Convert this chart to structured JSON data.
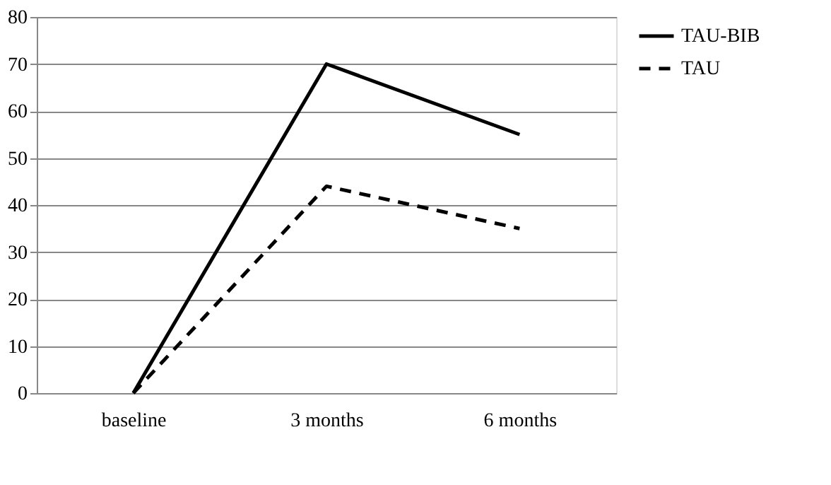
{
  "chart_data": {
    "type": "line",
    "categories": [
      "baseline",
      "3 months",
      "6 months"
    ],
    "series": [
      {
        "name": "TAU-BIB",
        "color": "#000000",
        "values": [
          0,
          70,
          55
        ],
        "line_style": "solid"
      },
      {
        "name": "TAU",
        "color": "#000000",
        "values": [
          0,
          44,
          35
        ],
        "line_style": "dashed"
      }
    ],
    "ylim": [
      0,
      80
    ],
    "yticks": [
      0,
      10,
      20,
      30,
      40,
      50,
      60,
      70,
      80
    ],
    "grid": "y",
    "legend": "right",
    "marker": "none"
  }
}
